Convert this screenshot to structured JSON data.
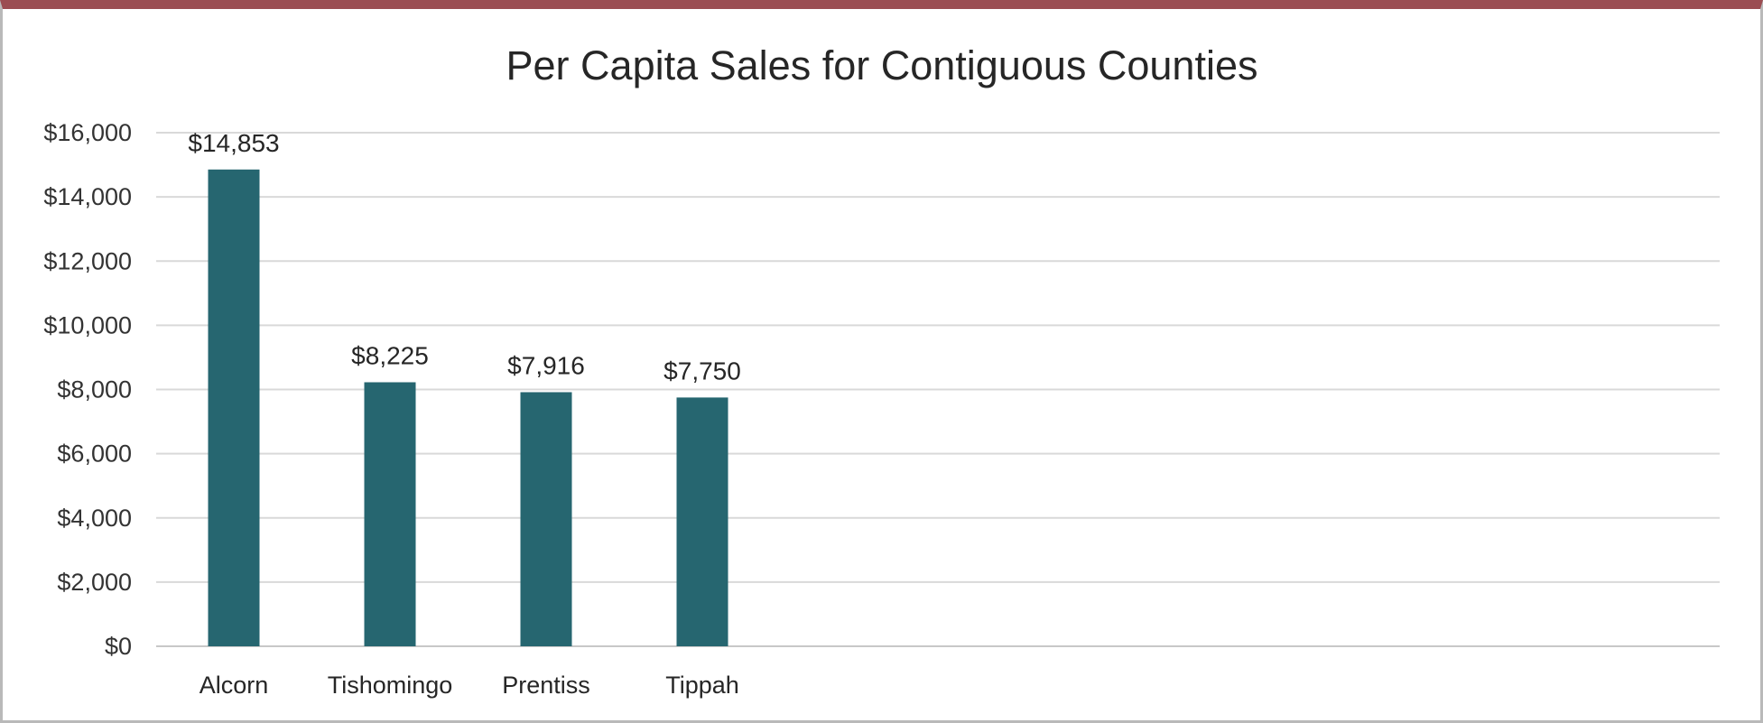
{
  "chart_data": {
    "type": "bar",
    "title": "Per Capita Sales for Contiguous Counties",
    "categories": [
      "Alcorn",
      "Tishomingo",
      "Prentiss",
      "Tippah"
    ],
    "values": [
      14853,
      8225,
      7916,
      7750
    ],
    "data_labels": [
      "$14,853",
      "$8,225",
      "$7,916",
      "$7,750"
    ],
    "y_ticks": [
      0,
      2000,
      4000,
      6000,
      8000,
      10000,
      12000,
      14000,
      16000
    ],
    "y_tick_labels": [
      "$0",
      "$2,000",
      "$4,000",
      "$6,000",
      "$8,000",
      "$10,000",
      "$12,000",
      "$14,000",
      "$16,000"
    ],
    "ylim": [
      0,
      16000
    ],
    "grid": true,
    "legend": "none",
    "xlabel": "",
    "ylabel": "",
    "bar_color": "#266670"
  }
}
